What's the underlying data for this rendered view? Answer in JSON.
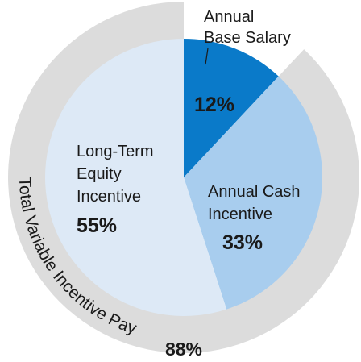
{
  "chart_data": {
    "type": "pie",
    "categories": [
      [
        "Annual",
        "Base Salary"
      ],
      [
        "Annual Cash",
        "Incentive"
      ],
      [
        "Long-Term",
        "Equity",
        "Incentive"
      ]
    ],
    "values": [
      12,
      33,
      55
    ],
    "value_labels": [
      "12%",
      "33%",
      "55%"
    ],
    "colors": [
      "#0a7ac9",
      "#a8cdee",
      "#dde9f6"
    ],
    "ring": {
      "label": "Total Variable Incentive Pay",
      "value": 88,
      "value_label": "88%",
      "color": "#dcdcdc"
    }
  }
}
